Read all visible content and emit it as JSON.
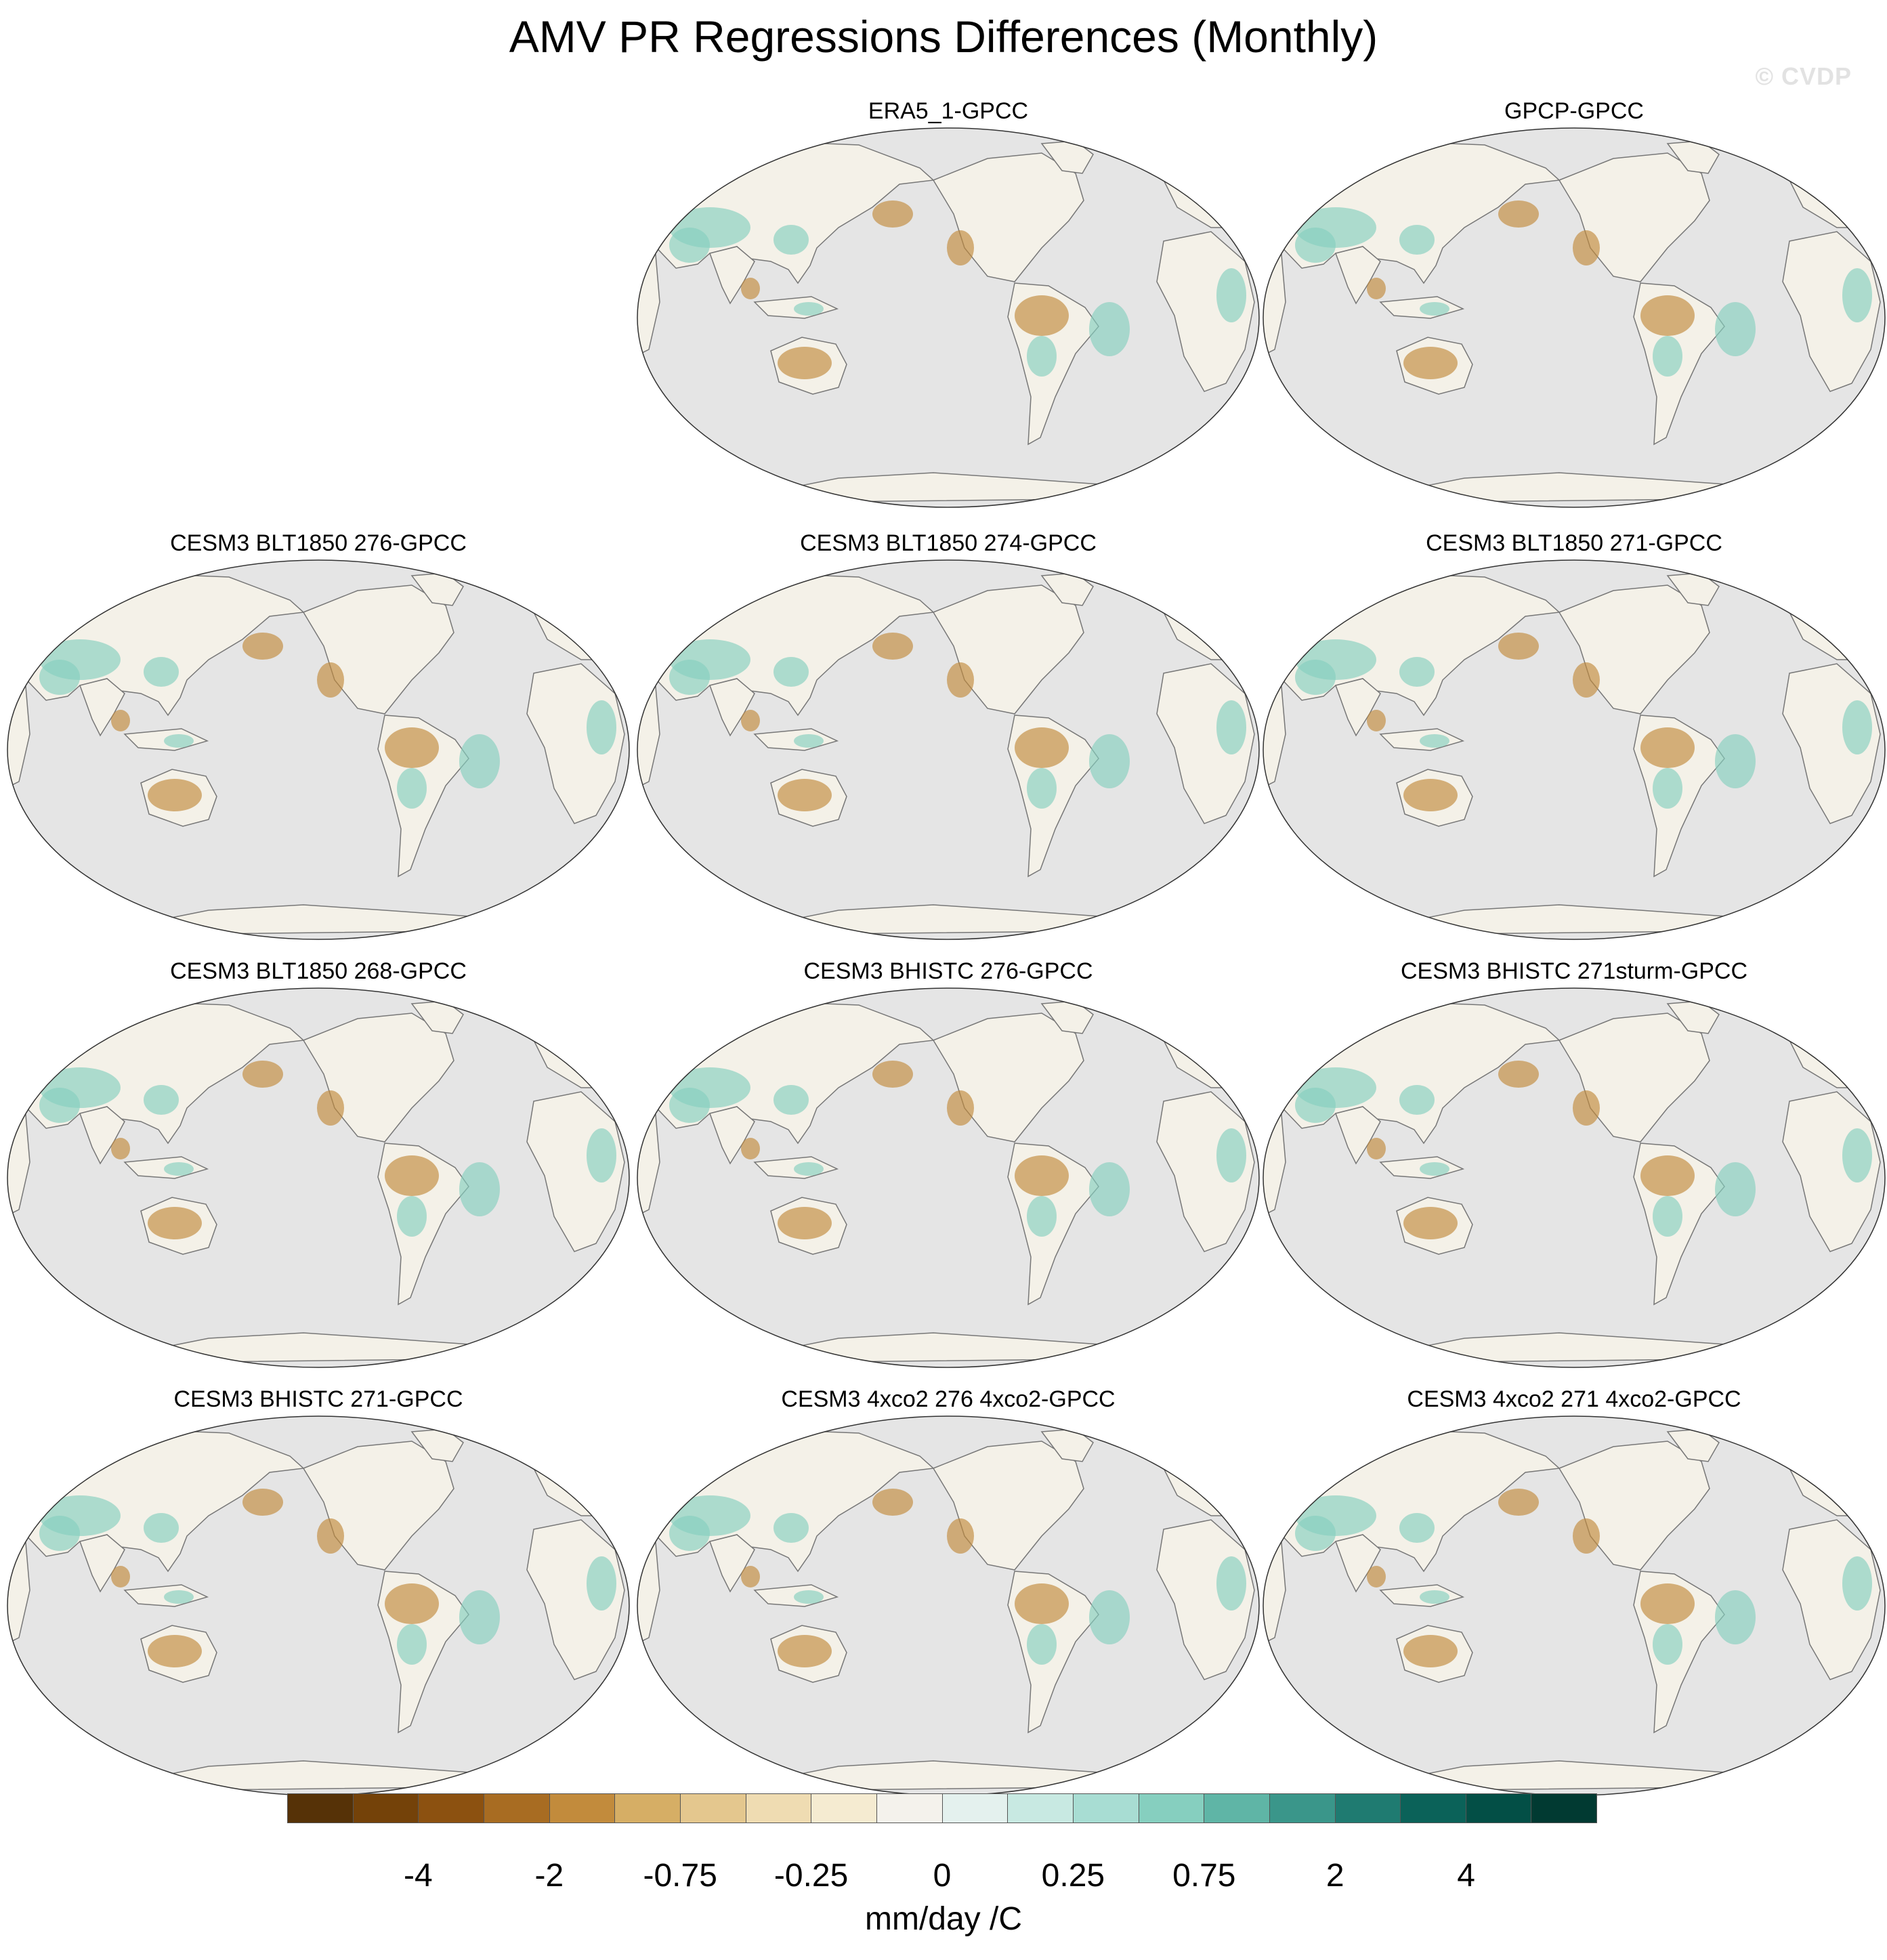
{
  "title": "AMV PR Regressions Differences (Monthly)",
  "watermark": "© CVDP",
  "panels": [
    {
      "title": "ERA5_1-GPCC"
    },
    {
      "title": "GPCP-GPCC"
    },
    {
      "title": "CESM3 BLT1850 276-GPCC"
    },
    {
      "title": "CESM3 BLT1850 274-GPCC"
    },
    {
      "title": "CESM3 BLT1850 271-GPCC"
    },
    {
      "title": "CESM3 BLT1850 268-GPCC"
    },
    {
      "title": "CESM3 BHISTC 276-GPCC"
    },
    {
      "title": "CESM3 BHISTC 271sturm-GPCC"
    },
    {
      "title": "CESM3 BHISTC 271-GPCC"
    },
    {
      "title": "CESM3 4xco2 276 4xco2-GPCC"
    },
    {
      "title": "CESM3 4xco2 271 4xco2-GPCC"
    }
  ],
  "colorbar": {
    "units": "mm/day /C",
    "labels": [
      "-4",
      "-2",
      "-0.75",
      "-0.25",
      "0",
      "0.25",
      "0.75",
      "2",
      "4"
    ],
    "colors": [
      "#563207",
      "#744209",
      "#8c5110",
      "#a86c22",
      "#c28b3c",
      "#d6ae65",
      "#e4c78e",
      "#efdcb2",
      "#f5ebd1",
      "#f4f2ec",
      "#e4f1ee",
      "#c8e9e2",
      "#a8ddd3",
      "#86cfbf",
      "#5fb5a6",
      "#3a968a",
      "#1f7b71",
      "#0b6259",
      "#034f46",
      "#013a32"
    ]
  },
  "map": {
    "ocean_color": "#e5e5e5",
    "wet_color": "#86cfbf",
    "dry_color": "#c28b3c",
    "coast_color": "#777777"
  }
}
